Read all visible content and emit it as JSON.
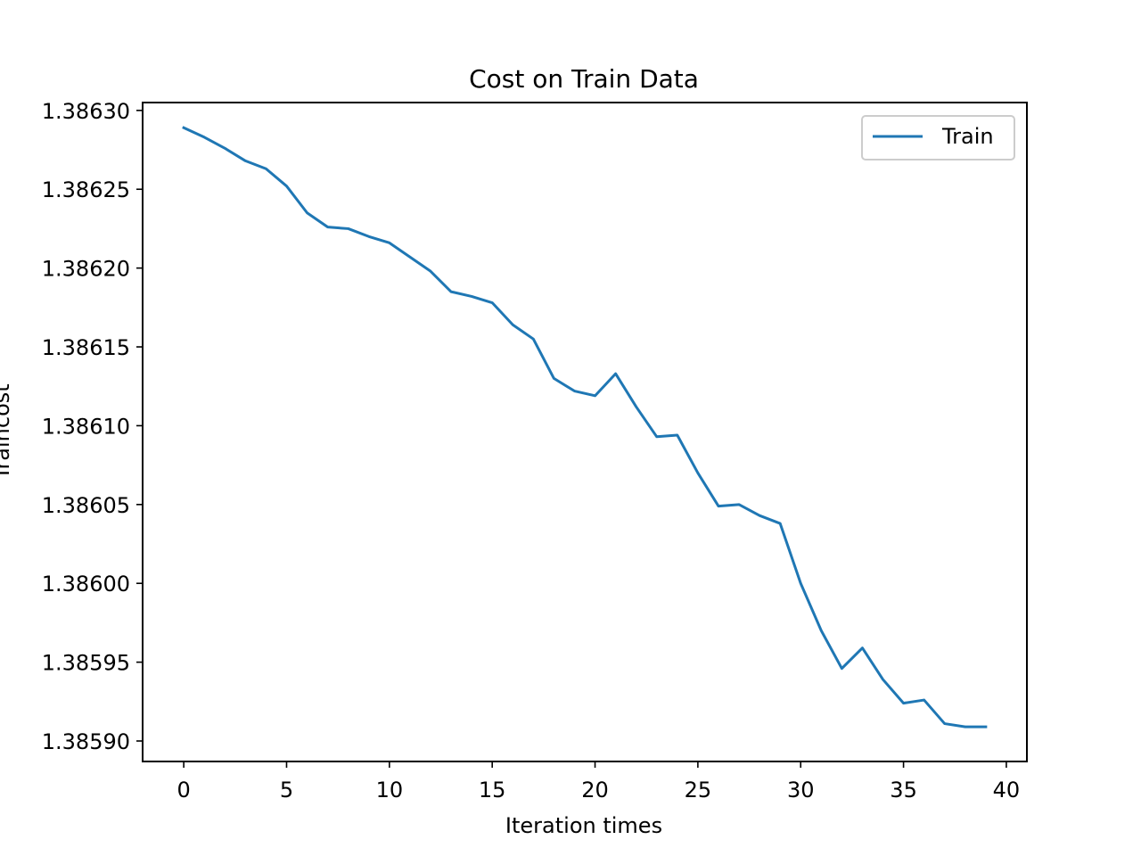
{
  "chart_data": {
    "type": "line",
    "title": "Cost on Train Data",
    "xlabel": "Iteration times",
    "ylabel": "Traincost",
    "xlim": [
      -2,
      41
    ],
    "ylim": [
      1.385887,
      1.386305
    ],
    "x_ticks": [
      0,
      5,
      10,
      15,
      20,
      25,
      30,
      35,
      40
    ],
    "y_ticks": [
      1.3859,
      1.38595,
      1.386,
      1.38605,
      1.3861,
      1.38615,
      1.3862,
      1.38625,
      1.3863
    ],
    "x_tick_labels": [
      "0",
      "5",
      "10",
      "15",
      "20",
      "25",
      "30",
      "35",
      "40"
    ],
    "y_tick_labels": [
      "1.38590",
      "1.38595",
      "1.38600",
      "1.38605",
      "1.38610",
      "1.38615",
      "1.38620",
      "1.38625",
      "1.38630"
    ],
    "grid": false,
    "legend_position": "top-right",
    "series": [
      {
        "name": "Train",
        "color": "#1f77b4",
        "x": [
          0,
          1,
          2,
          3,
          4,
          5,
          6,
          7,
          8,
          9,
          10,
          11,
          12,
          13,
          14,
          15,
          16,
          17,
          18,
          19,
          20,
          21,
          22,
          23,
          24,
          25,
          26,
          27,
          28,
          29,
          30,
          31,
          32,
          33,
          34,
          35,
          36,
          37,
          38,
          39
        ],
        "y": [
          1.386289,
          1.386283,
          1.386276,
          1.386268,
          1.386263,
          1.386252,
          1.386235,
          1.386226,
          1.386225,
          1.38622,
          1.386216,
          1.386207,
          1.386198,
          1.386185,
          1.386182,
          1.386178,
          1.386164,
          1.386155,
          1.38613,
          1.386122,
          1.386119,
          1.386133,
          1.386112,
          1.386093,
          1.386094,
          1.38607,
          1.386049,
          1.38605,
          1.386043,
          1.386038,
          1.386,
          1.38597,
          1.385946,
          1.385959,
          1.385939,
          1.385924,
          1.385926,
          1.385911,
          1.385909,
          1.385909
        ]
      }
    ]
  }
}
